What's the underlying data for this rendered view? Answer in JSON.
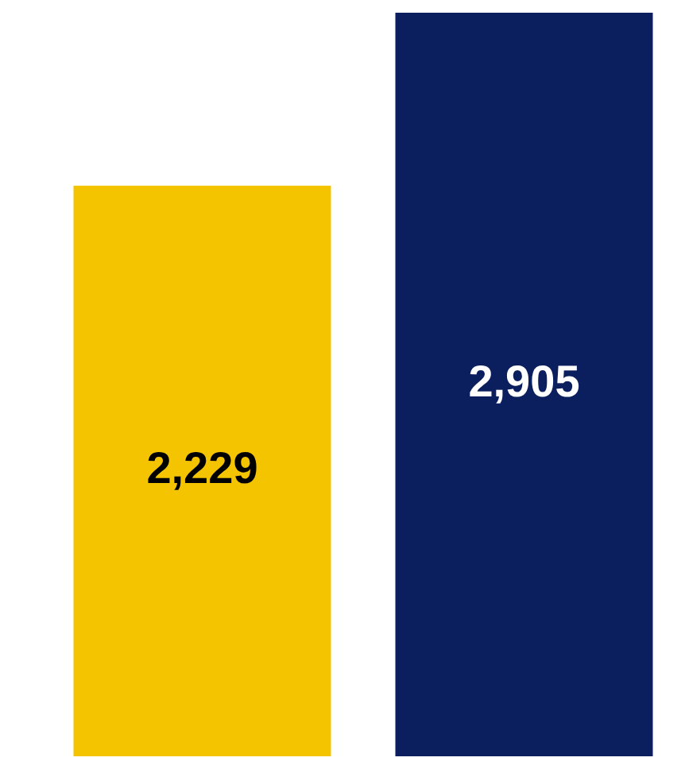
{
  "chart_data": {
    "type": "bar",
    "categories": [
      null,
      null
    ],
    "values": [
      2229,
      2905
    ],
    "value_labels": [
      "2,229",
      "2,905"
    ],
    "colors": [
      "#f5c400",
      "#0b1f5e"
    ],
    "relative": false,
    "tick_labels": false
  }
}
